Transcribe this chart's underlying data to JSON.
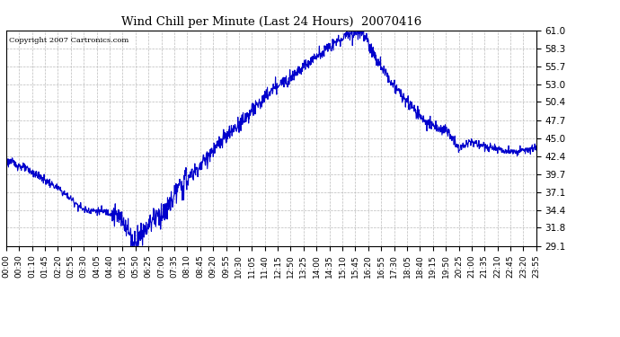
{
  "title": "Wind Chill per Minute (Last 24 Hours)  20070416",
  "copyright": "Copyright 2007 Cartronics.com",
  "line_color": "#0000cc",
  "background_color": "#ffffff",
  "plot_bg_color": "#ffffff",
  "grid_color": "#bbbbbb",
  "ylim": [
    29.1,
    61.0
  ],
  "yticks": [
    29.1,
    31.8,
    34.4,
    37.1,
    39.7,
    42.4,
    45.0,
    47.7,
    50.4,
    53.0,
    55.7,
    58.3,
    61.0
  ],
  "xtick_labels": [
    "00:00",
    "00:30",
    "01:10",
    "01:45",
    "02:20",
    "02:55",
    "03:30",
    "04:05",
    "04:40",
    "05:15",
    "05:50",
    "06:25",
    "07:00",
    "07:35",
    "08:10",
    "08:45",
    "09:20",
    "09:55",
    "10:30",
    "11:05",
    "11:40",
    "12:15",
    "12:50",
    "13:25",
    "14:00",
    "14:35",
    "15:10",
    "15:45",
    "16:20",
    "16:55",
    "17:30",
    "18:05",
    "18:40",
    "19:15",
    "19:50",
    "20:25",
    "21:00",
    "21:35",
    "22:10",
    "22:45",
    "23:20",
    "23:55"
  ],
  "n_points": 1440
}
